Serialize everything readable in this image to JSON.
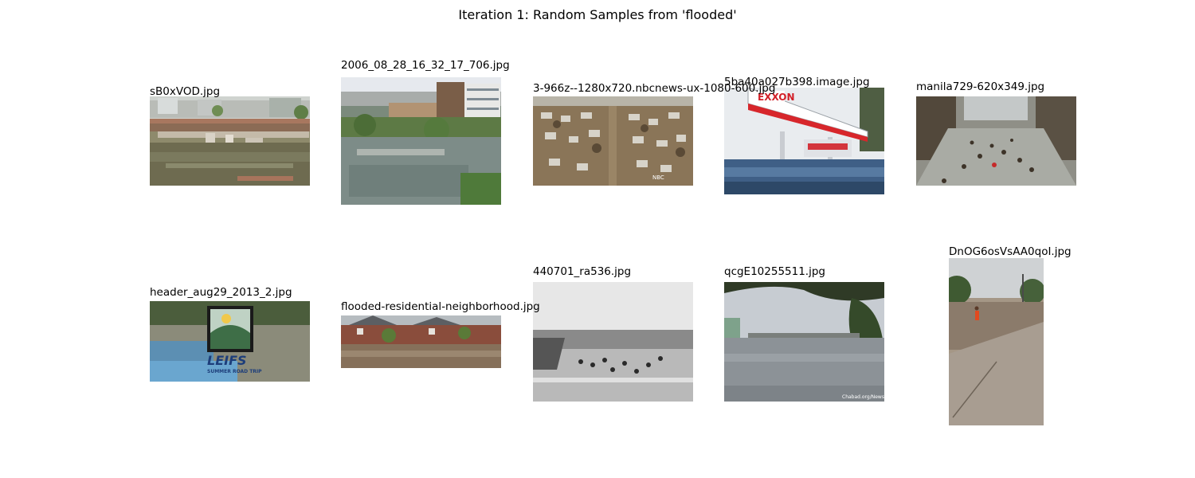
{
  "figure": {
    "title": "Iteration 1: Random Samples from 'flooded'"
  },
  "samples": [
    {
      "filename": "sB0xVOD.jpg"
    },
    {
      "filename": "2006_08_28_16_32_17_706.jpg"
    },
    {
      "filename": "3-966z--1280x720.nbcnews-ux-1080-600.jpg"
    },
    {
      "filename": "5ba40a027b398.image.jpg"
    },
    {
      "filename": "manila729-620x349.jpg"
    },
    {
      "filename": "header_aug29_2013_2.jpg"
    },
    {
      "filename": "flooded-residential-neighborhood.jpg"
    },
    {
      "filename": "440701_ra536.jpg"
    },
    {
      "filename": "qcgE10255511.jpg"
    },
    {
      "filename": "DnOG6osVsAA0qoI.jpg"
    }
  ],
  "image_text": {
    "gas_station_sign": "EXXON",
    "boat_banner_line1": "LEIFS",
    "boat_banner_line2": "SUMMER ROAD TRIP",
    "watermark_nbc": "NBC",
    "watermark_chabad": "Chabad.org/News"
  }
}
